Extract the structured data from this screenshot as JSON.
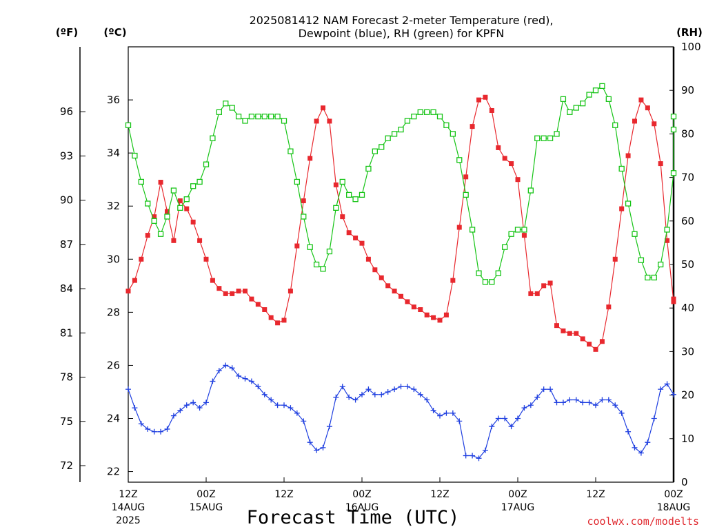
{
  "chart_data": {
    "type": "line",
    "title_line1": "2025081412 NAM Forecast 2-meter Temperature (red),",
    "title_line2": "Dewpoint (blue), RH (green) for KPFN",
    "xlabel": "Forecast Time (UTC)",
    "credit": "coolwx.com/modelts",
    "units": {
      "fahrenheit": "(ºF)",
      "celsius": "(ºC)",
      "rh": "(RH)"
    },
    "x_range_hours": [
      0,
      84
    ],
    "x_tick_labels": [
      {
        "hour": 0,
        "time": "12Z",
        "date": "14AUG",
        "year": "2025"
      },
      {
        "hour": 12,
        "time": "00Z",
        "date": "15AUG",
        "year": ""
      },
      {
        "hour": 24,
        "time": "12Z",
        "date": "",
        "year": ""
      },
      {
        "hour": 36,
        "time": "00Z",
        "date": "16AUG",
        "year": ""
      },
      {
        "hour": 48,
        "time": "12Z",
        "date": "",
        "year": ""
      },
      {
        "hour": 60,
        "time": "00Z",
        "date": "17AUG",
        "year": ""
      },
      {
        "hour": 72,
        "time": "12Z",
        "date": "",
        "year": ""
      },
      {
        "hour": 84,
        "time": "00Z",
        "date": "18AUG",
        "year": ""
      }
    ],
    "y_left_celsius": {
      "range": [
        21.6,
        38.0
      ],
      "ticks": [
        22,
        24,
        26,
        28,
        30,
        32,
        34,
        36
      ]
    },
    "y_left_fahrenheit": {
      "ticks": [
        72,
        75,
        78,
        81,
        84,
        87,
        90,
        93,
        96
      ]
    },
    "y_right_rh": {
      "range": [
        0,
        100
      ],
      "ticks": [
        0,
        10,
        20,
        30,
        40,
        50,
        60,
        70,
        80,
        90,
        100
      ]
    },
    "grid": true,
    "colors": {
      "temperature": "#e8282e",
      "dewpoint": "#1f3fe0",
      "rh": "#16c416",
      "axis": "#000000",
      "grid": "#b4b4b4"
    },
    "series": [
      {
        "key": "temperature",
        "unit": "celsius",
        "marker": "square-filled",
        "points": [
          [
            0,
            28.8
          ],
          [
            1,
            29.2
          ],
          [
            2,
            30.0
          ],
          [
            3,
            30.9
          ],
          [
            4,
            31.6
          ],
          [
            5,
            32.9
          ],
          [
            6,
            31.8
          ],
          [
            7,
            30.7
          ],
          [
            8,
            32.2
          ],
          [
            9,
            31.9
          ],
          [
            10,
            31.4
          ],
          [
            11,
            30.7
          ],
          [
            12,
            30.0
          ],
          [
            13,
            29.2
          ],
          [
            14,
            28.9
          ],
          [
            15,
            28.7
          ],
          [
            16,
            28.7
          ],
          [
            17,
            28.8
          ],
          [
            18,
            28.8
          ],
          [
            19,
            28.5
          ],
          [
            20,
            28.3
          ],
          [
            21,
            28.1
          ],
          [
            22,
            27.8
          ],
          [
            23,
            27.6
          ],
          [
            24,
            27.7
          ],
          [
            25,
            28.8
          ],
          [
            26,
            30.5
          ],
          [
            27,
            32.2
          ],
          [
            28,
            33.8
          ],
          [
            29,
            35.2
          ],
          [
            30,
            35.7
          ],
          [
            31,
            35.2
          ],
          [
            32,
            32.8
          ],
          [
            33,
            31.6
          ],
          [
            34,
            31.0
          ],
          [
            35,
            30.8
          ],
          [
            36,
            30.6
          ],
          [
            37,
            30.0
          ],
          [
            38,
            29.6
          ],
          [
            39,
            29.3
          ],
          [
            40,
            29.0
          ],
          [
            41,
            28.8
          ],
          [
            42,
            28.6
          ],
          [
            43,
            28.4
          ],
          [
            44,
            28.2
          ],
          [
            45,
            28.1
          ],
          [
            46,
            27.9
          ],
          [
            47,
            27.8
          ],
          [
            48,
            27.7
          ],
          [
            49,
            27.9
          ],
          [
            50,
            29.2
          ],
          [
            51,
            31.2
          ],
          [
            52,
            33.1
          ],
          [
            53,
            35.0
          ],
          [
            54,
            36.0
          ],
          [
            55,
            36.1
          ],
          [
            56,
            35.6
          ],
          [
            57,
            34.2
          ],
          [
            58,
            33.8
          ],
          [
            59,
            33.6
          ],
          [
            60,
            33.0
          ],
          [
            61,
            30.9
          ],
          [
            62,
            28.7
          ],
          [
            63,
            28.7
          ],
          [
            64,
            29.0
          ],
          [
            65,
            29.1
          ],
          [
            66,
            27.5
          ],
          [
            67,
            27.3
          ],
          [
            68,
            27.2
          ],
          [
            69,
            27.2
          ],
          [
            70,
            27.0
          ],
          [
            71,
            26.8
          ],
          [
            72,
            26.6
          ],
          [
            73,
            26.9
          ],
          [
            74,
            28.2
          ],
          [
            75,
            30.0
          ],
          [
            76,
            31.9
          ],
          [
            77,
            33.9
          ],
          [
            78,
            35.2
          ],
          [
            79,
            36.0
          ],
          [
            80,
            35.7
          ],
          [
            81,
            35.1
          ],
          [
            82,
            33.6
          ],
          [
            83,
            30.7
          ],
          [
            84,
            28.4
          ],
          [
            85,
            28.5
          ]
        ]
      },
      {
        "key": "dewpoint",
        "unit": "celsius",
        "marker": "plus",
        "points": [
          [
            0,
            25.1
          ],
          [
            1,
            24.4
          ],
          [
            2,
            23.8
          ],
          [
            3,
            23.6
          ],
          [
            4,
            23.5
          ],
          [
            5,
            23.5
          ],
          [
            6,
            23.6
          ],
          [
            7,
            24.1
          ],
          [
            8,
            24.3
          ],
          [
            9,
            24.5
          ],
          [
            10,
            24.6
          ],
          [
            11,
            24.4
          ],
          [
            12,
            24.6
          ],
          [
            13,
            25.4
          ],
          [
            14,
            25.8
          ],
          [
            15,
            26.0
          ],
          [
            16,
            25.9
          ],
          [
            17,
            25.6
          ],
          [
            18,
            25.5
          ],
          [
            19,
            25.4
          ],
          [
            20,
            25.2
          ],
          [
            21,
            24.9
          ],
          [
            22,
            24.7
          ],
          [
            23,
            24.5
          ],
          [
            24,
            24.5
          ],
          [
            25,
            24.4
          ],
          [
            26,
            24.2
          ],
          [
            27,
            23.9
          ],
          [
            28,
            23.1
          ],
          [
            29,
            22.8
          ],
          [
            30,
            22.9
          ],
          [
            31,
            23.7
          ],
          [
            32,
            24.8
          ],
          [
            33,
            25.2
          ],
          [
            34,
            24.8
          ],
          [
            35,
            24.7
          ],
          [
            36,
            24.9
          ],
          [
            37,
            25.1
          ],
          [
            38,
            24.9
          ],
          [
            39,
            24.9
          ],
          [
            40,
            25.0
          ],
          [
            41,
            25.1
          ],
          [
            42,
            25.2
          ],
          [
            43,
            25.2
          ],
          [
            44,
            25.1
          ],
          [
            45,
            24.9
          ],
          [
            46,
            24.7
          ],
          [
            47,
            24.3
          ],
          [
            48,
            24.1
          ],
          [
            49,
            24.2
          ],
          [
            50,
            24.2
          ],
          [
            51,
            23.9
          ],
          [
            52,
            22.6
          ],
          [
            53,
            22.6
          ],
          [
            54,
            22.5
          ],
          [
            55,
            22.8
          ],
          [
            56,
            23.7
          ],
          [
            57,
            24.0
          ],
          [
            58,
            24.0
          ],
          [
            59,
            23.7
          ],
          [
            60,
            24.0
          ],
          [
            61,
            24.4
          ],
          [
            62,
            24.5
          ],
          [
            63,
            24.8
          ],
          [
            64,
            25.1
          ],
          [
            65,
            25.1
          ],
          [
            66,
            24.6
          ],
          [
            67,
            24.6
          ],
          [
            68,
            24.7
          ],
          [
            69,
            24.7
          ],
          [
            70,
            24.6
          ],
          [
            71,
            24.6
          ],
          [
            72,
            24.5
          ],
          [
            73,
            24.7
          ],
          [
            74,
            24.7
          ],
          [
            75,
            24.5
          ],
          [
            76,
            24.2
          ],
          [
            77,
            23.5
          ],
          [
            78,
            22.9
          ],
          [
            79,
            22.7
          ],
          [
            80,
            23.1
          ],
          [
            81,
            24.0
          ],
          [
            82,
            25.1
          ],
          [
            83,
            25.3
          ],
          [
            84,
            24.9
          ]
        ]
      },
      {
        "key": "rh",
        "unit": "rh",
        "marker": "square-open",
        "points": [
          [
            0,
            82
          ],
          [
            1,
            75
          ],
          [
            2,
            69
          ],
          [
            3,
            64
          ],
          [
            4,
            60
          ],
          [
            5,
            57
          ],
          [
            6,
            61
          ],
          [
            7,
            67
          ],
          [
            8,
            63
          ],
          [
            9,
            65
          ],
          [
            10,
            68
          ],
          [
            11,
            69
          ],
          [
            12,
            73
          ],
          [
            13,
            79
          ],
          [
            14,
            85
          ],
          [
            15,
            87
          ],
          [
            16,
            86
          ],
          [
            17,
            84
          ],
          [
            18,
            83
          ],
          [
            19,
            84
          ],
          [
            20,
            84
          ],
          [
            21,
            84
          ],
          [
            22,
            84
          ],
          [
            23,
            84
          ],
          [
            24,
            83
          ],
          [
            25,
            76
          ],
          [
            26,
            69
          ],
          [
            27,
            61
          ],
          [
            28,
            54
          ],
          [
            29,
            50
          ],
          [
            30,
            49
          ],
          [
            31,
            53
          ],
          [
            32,
            63
          ],
          [
            33,
            69
          ],
          [
            34,
            66
          ],
          [
            35,
            65
          ],
          [
            36,
            66
          ],
          [
            37,
            72
          ],
          [
            38,
            76
          ],
          [
            39,
            77
          ],
          [
            40,
            79
          ],
          [
            41,
            80
          ],
          [
            42,
            81
          ],
          [
            43,
            83
          ],
          [
            44,
            84
          ],
          [
            45,
            85
          ],
          [
            46,
            85
          ],
          [
            47,
            85
          ],
          [
            48,
            84
          ],
          [
            49,
            82
          ],
          [
            50,
            80
          ],
          [
            51,
            74
          ],
          [
            52,
            66
          ],
          [
            53,
            58
          ],
          [
            54,
            48
          ],
          [
            55,
            46
          ],
          [
            56,
            46
          ],
          [
            57,
            48
          ],
          [
            58,
            54
          ],
          [
            59,
            57
          ],
          [
            60,
            58
          ],
          [
            61,
            58
          ],
          [
            62,
            67
          ],
          [
            63,
            79
          ],
          [
            64,
            79
          ],
          [
            65,
            79
          ],
          [
            66,
            80
          ],
          [
            67,
            88
          ],
          [
            68,
            85
          ],
          [
            69,
            86
          ],
          [
            70,
            87
          ],
          [
            71,
            89
          ],
          [
            72,
            90
          ],
          [
            73,
            91
          ],
          [
            74,
            88
          ],
          [
            75,
            82
          ],
          [
            76,
            72
          ],
          [
            77,
            64
          ],
          [
            78,
            57
          ],
          [
            79,
            51
          ],
          [
            80,
            47
          ],
          [
            81,
            47
          ],
          [
            82,
            50
          ],
          [
            83,
            58
          ],
          [
            84,
            71
          ],
          [
            85,
            84
          ],
          [
            86,
            81
          ]
        ]
      }
    ]
  }
}
